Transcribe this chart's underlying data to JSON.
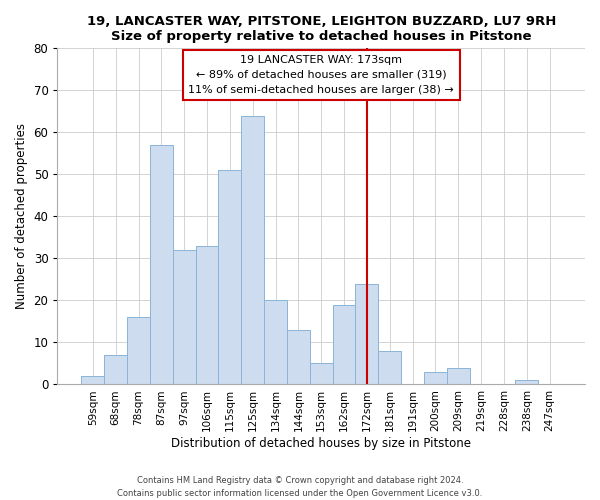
{
  "title": "19, LANCASTER WAY, PITSTONE, LEIGHTON BUZZARD, LU7 9RH",
  "subtitle": "Size of property relative to detached houses in Pitstone",
  "xlabel": "Distribution of detached houses by size in Pitstone",
  "ylabel": "Number of detached properties",
  "bar_labels": [
    "59sqm",
    "68sqm",
    "78sqm",
    "87sqm",
    "97sqm",
    "106sqm",
    "115sqm",
    "125sqm",
    "134sqm",
    "144sqm",
    "153sqm",
    "162sqm",
    "172sqm",
    "181sqm",
    "191sqm",
    "200sqm",
    "209sqm",
    "219sqm",
    "228sqm",
    "238sqm",
    "247sqm"
  ],
  "bar_heights": [
    2,
    7,
    16,
    57,
    32,
    33,
    51,
    64,
    20,
    13,
    5,
    19,
    24,
    8,
    0,
    3,
    4,
    0,
    0,
    1,
    0
  ],
  "bar_color": "#cddcee",
  "bar_edge_color": "#8ab4d8",
  "vline_x": 12,
  "vline_color": "#cc0000",
  "annotation_title": "19 LANCASTER WAY: 173sqm",
  "annotation_line1": "← 89% of detached houses are smaller (319)",
  "annotation_line2": "11% of semi-detached houses are larger (38) →",
  "annotation_box_edge": "#cc0000",
  "ylim": [
    0,
    80
  ],
  "yticks": [
    0,
    10,
    20,
    30,
    40,
    50,
    60,
    70,
    80
  ],
  "footer_line1": "Contains HM Land Registry data © Crown copyright and database right 2024.",
  "footer_line2": "Contains public sector information licensed under the Open Government Licence v3.0."
}
